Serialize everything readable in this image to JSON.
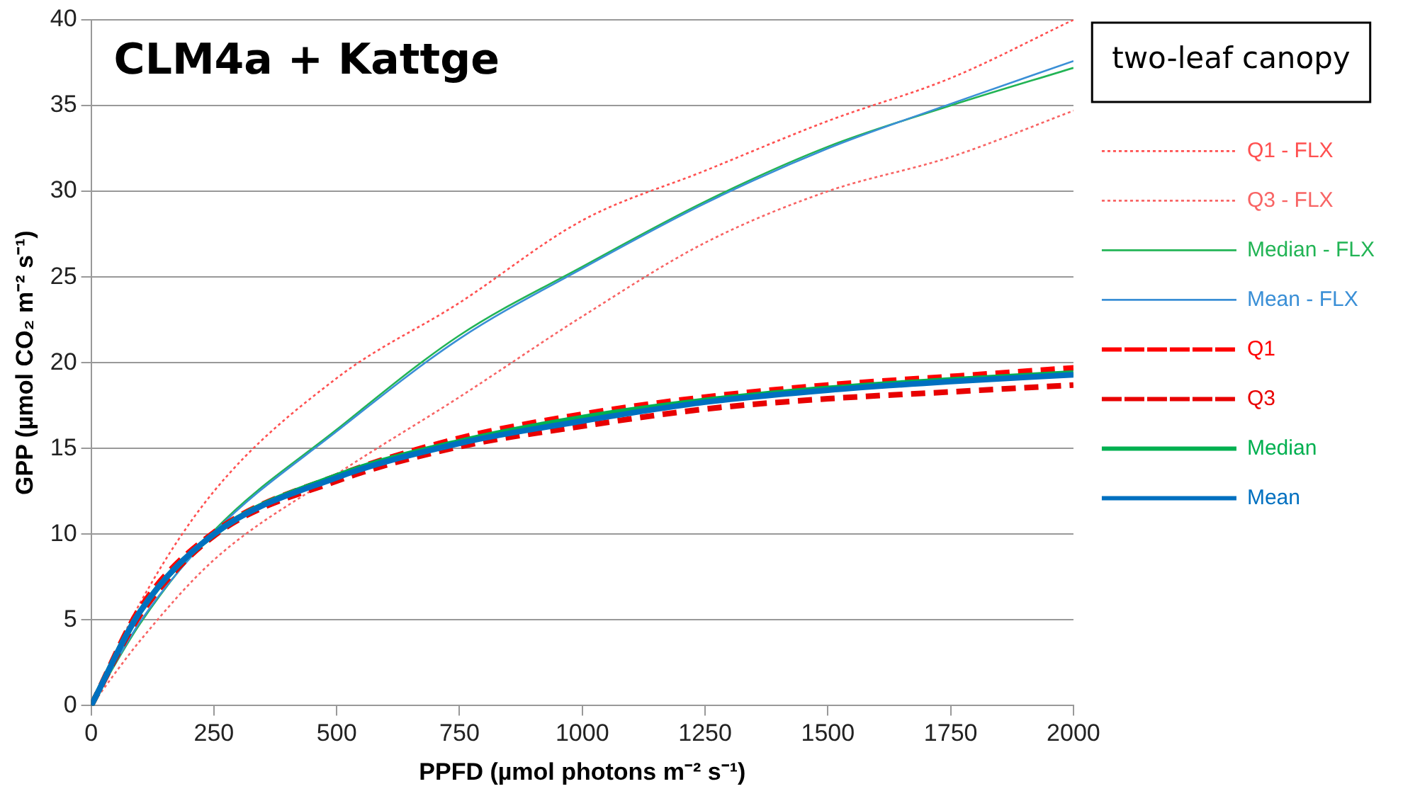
{
  "chart_data": {
    "type": "line",
    "title": "CLM4a + Kattge",
    "xlabel": "PPFD (µmol photons m⁻² s⁻¹)",
    "ylabel": "GPP (µmol CO₂ m⁻² s⁻¹)",
    "legend_title": "two-leaf canopy",
    "legend": "right",
    "grid": "y",
    "marker": "none",
    "x": [
      0,
      100,
      250,
      500,
      750,
      1000,
      1250,
      1500,
      1750,
      2000
    ],
    "xlim": [
      0,
      2000
    ],
    "xticks": [
      0,
      250,
      500,
      750,
      1000,
      1250,
      1500,
      1750,
      2000
    ],
    "ylim": [
      0,
      40
    ],
    "yticks": [
      0,
      5,
      10,
      15,
      20,
      25,
      30,
      35,
      40
    ],
    "series": [
      {
        "name": "Q1 - FLX",
        "color": "#ff5050",
        "line_style": "dotted",
        "values": [
          0,
          6,
          12.5,
          19.1,
          23.5,
          28.3,
          31.2,
          34.1,
          36.6,
          40
        ]
      },
      {
        "name": "Q3 - FLX",
        "color": "#f86464",
        "line_style": "dotted",
        "values": [
          0,
          3.8,
          8.5,
          13.5,
          18,
          22.7,
          27,
          30,
          32,
          34.7
        ]
      },
      {
        "name": "Median - FLX",
        "color": "#22b455",
        "line_style": "solid",
        "values": [
          0,
          4.8,
          10.2,
          16.1,
          21.6,
          25.6,
          29.4,
          32.6,
          35,
          37.2
        ]
      },
      {
        "name": "Mean - FLX",
        "color": "#3a8fd6",
        "line_style": "solid",
        "values": [
          0,
          4.9,
          10.1,
          16,
          21.4,
          25.5,
          29.3,
          32.5,
          35.1,
          37.6
        ]
      },
      {
        "name": "Q1",
        "color": "#ff0000",
        "line_style": "dashed",
        "values": [
          0,
          5.7,
          10.1,
          13.4,
          15.6,
          17,
          18,
          18.7,
          19.2,
          19.7
        ]
      },
      {
        "name": "Q3",
        "color": "#e80000",
        "line_style": "dashed",
        "values": [
          0,
          5.3,
          9.9,
          13.1,
          15.1,
          16.3,
          17.3,
          17.9,
          18.3,
          18.7
        ]
      },
      {
        "name": "Median",
        "color": "#00b050",
        "line_style": "solid",
        "values": [
          0,
          5.5,
          10,
          13.4,
          15.4,
          16.8,
          17.8,
          18.5,
          19,
          19.4
        ]
      },
      {
        "name": "Mean",
        "color": "#0070c0",
        "line_style": "solid",
        "values": [
          0,
          5.5,
          10,
          13.3,
          15.3,
          16.6,
          17.7,
          18.4,
          18.9,
          19.3
        ]
      }
    ]
  }
}
